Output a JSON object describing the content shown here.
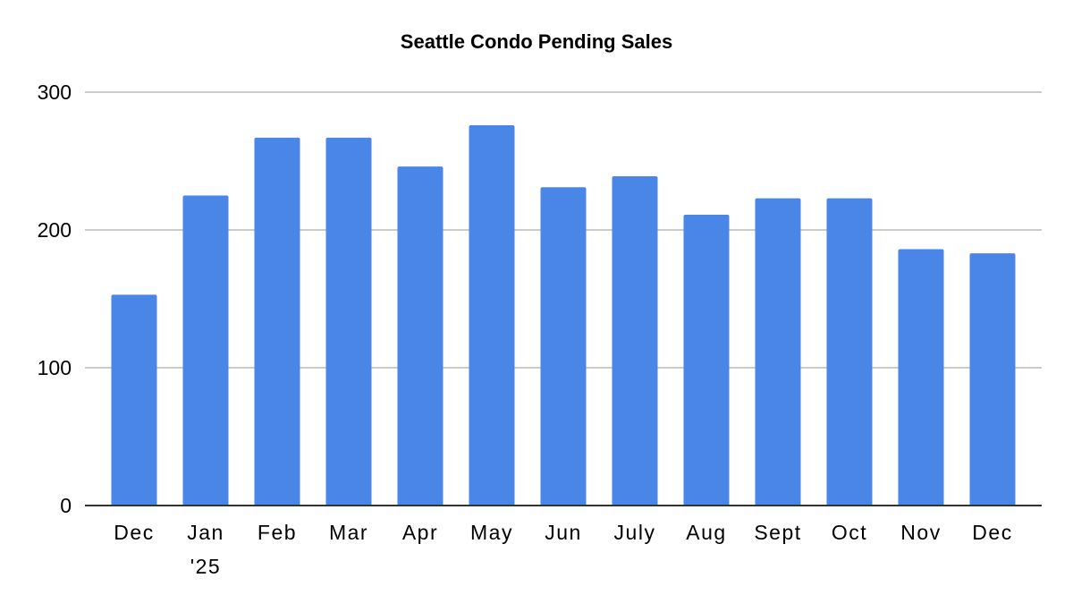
{
  "chart_data": {
    "type": "bar",
    "title": "Seattle Condo Pending Sales",
    "xlabel": "",
    "ylabel": "",
    "categories": [
      "Dec",
      "Jan\n'25",
      "Feb",
      "Mar",
      "Apr",
      "May",
      "Jun",
      "July",
      "Aug",
      "Sept",
      "Oct",
      "Nov",
      "Dec"
    ],
    "values": [
      153,
      225,
      267,
      267,
      246,
      276,
      231,
      239,
      211,
      223,
      223,
      186,
      183
    ],
    "ylim": [
      0,
      300
    ],
    "yticks": [
      0,
      100,
      200,
      300
    ],
    "grid": true,
    "legend": "none",
    "colors": {
      "bar": "#4a86e8",
      "grid": "#cccccc",
      "axis": "#333333"
    }
  }
}
